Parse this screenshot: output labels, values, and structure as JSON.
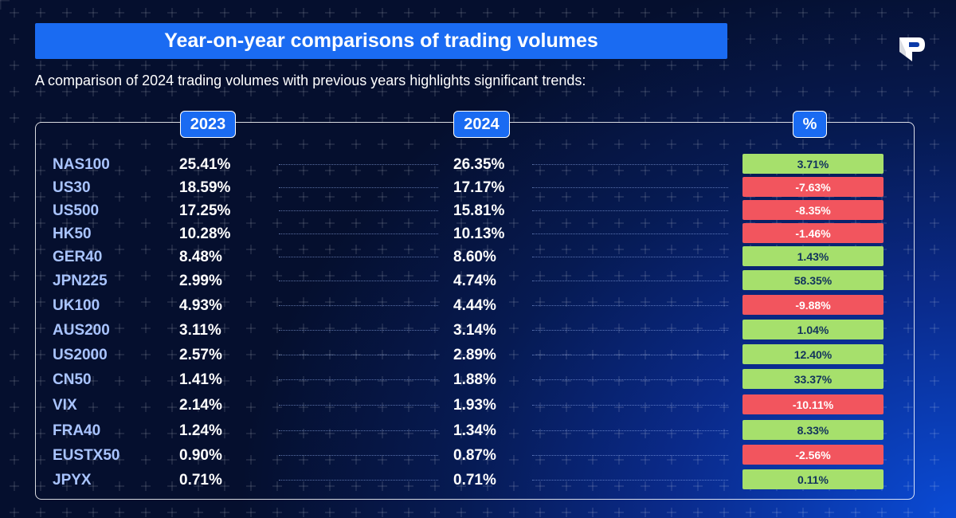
{
  "header": {
    "title": "Year-on-year comparisons of trading volumes",
    "subtitle": "A comparison of 2024 trading volumes with previous years highlights significant trends:"
  },
  "chart_data": {
    "type": "table",
    "columns": [
      "2023",
      "2024",
      "%"
    ],
    "rows": [
      {
        "name": "NAS100",
        "y2023": "25.41%",
        "y2024": "26.35%",
        "change": "3.71%"
      },
      {
        "name": "US30",
        "y2023": "18.59%",
        "y2024": "17.17%",
        "change": "-7.63%"
      },
      {
        "name": "US500",
        "y2023": "17.25%",
        "y2024": "15.81%",
        "change": "-8.35%"
      },
      {
        "name": "HK50",
        "y2023": "10.28%",
        "y2024": "10.13%",
        "change": "-1.46%"
      },
      {
        "name": "GER40",
        "y2023": "8.48%",
        "y2024": "8.60%",
        "change": "1.43%"
      },
      {
        "name": "JPN225",
        "y2023": "2.99%",
        "y2024": "4.74%",
        "change": "58.35%"
      },
      {
        "name": "UK100",
        "y2023": "4.93%",
        "y2024": "4.44%",
        "change": "-9.88%"
      },
      {
        "name": "AUS200",
        "y2023": "3.11%",
        "y2024": "3.14%",
        "change": "1.04%"
      },
      {
        "name": "US2000",
        "y2023": "2.57%",
        "y2024": "2.89%",
        "change": "12.40%"
      },
      {
        "name": "CN50",
        "y2023": "1.41%",
        "y2024": "1.88%",
        "change": "33.37%"
      },
      {
        "name": "VIX",
        "y2023": "2.14%",
        "y2024": "1.93%",
        "change": "-10.11%"
      },
      {
        "name": "FRA40",
        "y2023": "1.24%",
        "y2024": "1.34%",
        "change": "8.33%"
      },
      {
        "name": "EUSTX50",
        "y2023": "0.90%",
        "y2024": "0.87%",
        "change": "-2.56%"
      },
      {
        "name": "JPYX",
        "y2023": "0.71%",
        "y2024": "0.71%",
        "change": "0.11%"
      }
    ]
  },
  "colors": {
    "positive": "#a6e06c",
    "negative": "#f2555e",
    "accent": "#1a6bf2"
  },
  "logo": {
    "icon": "brand-p-logo-icon"
  }
}
